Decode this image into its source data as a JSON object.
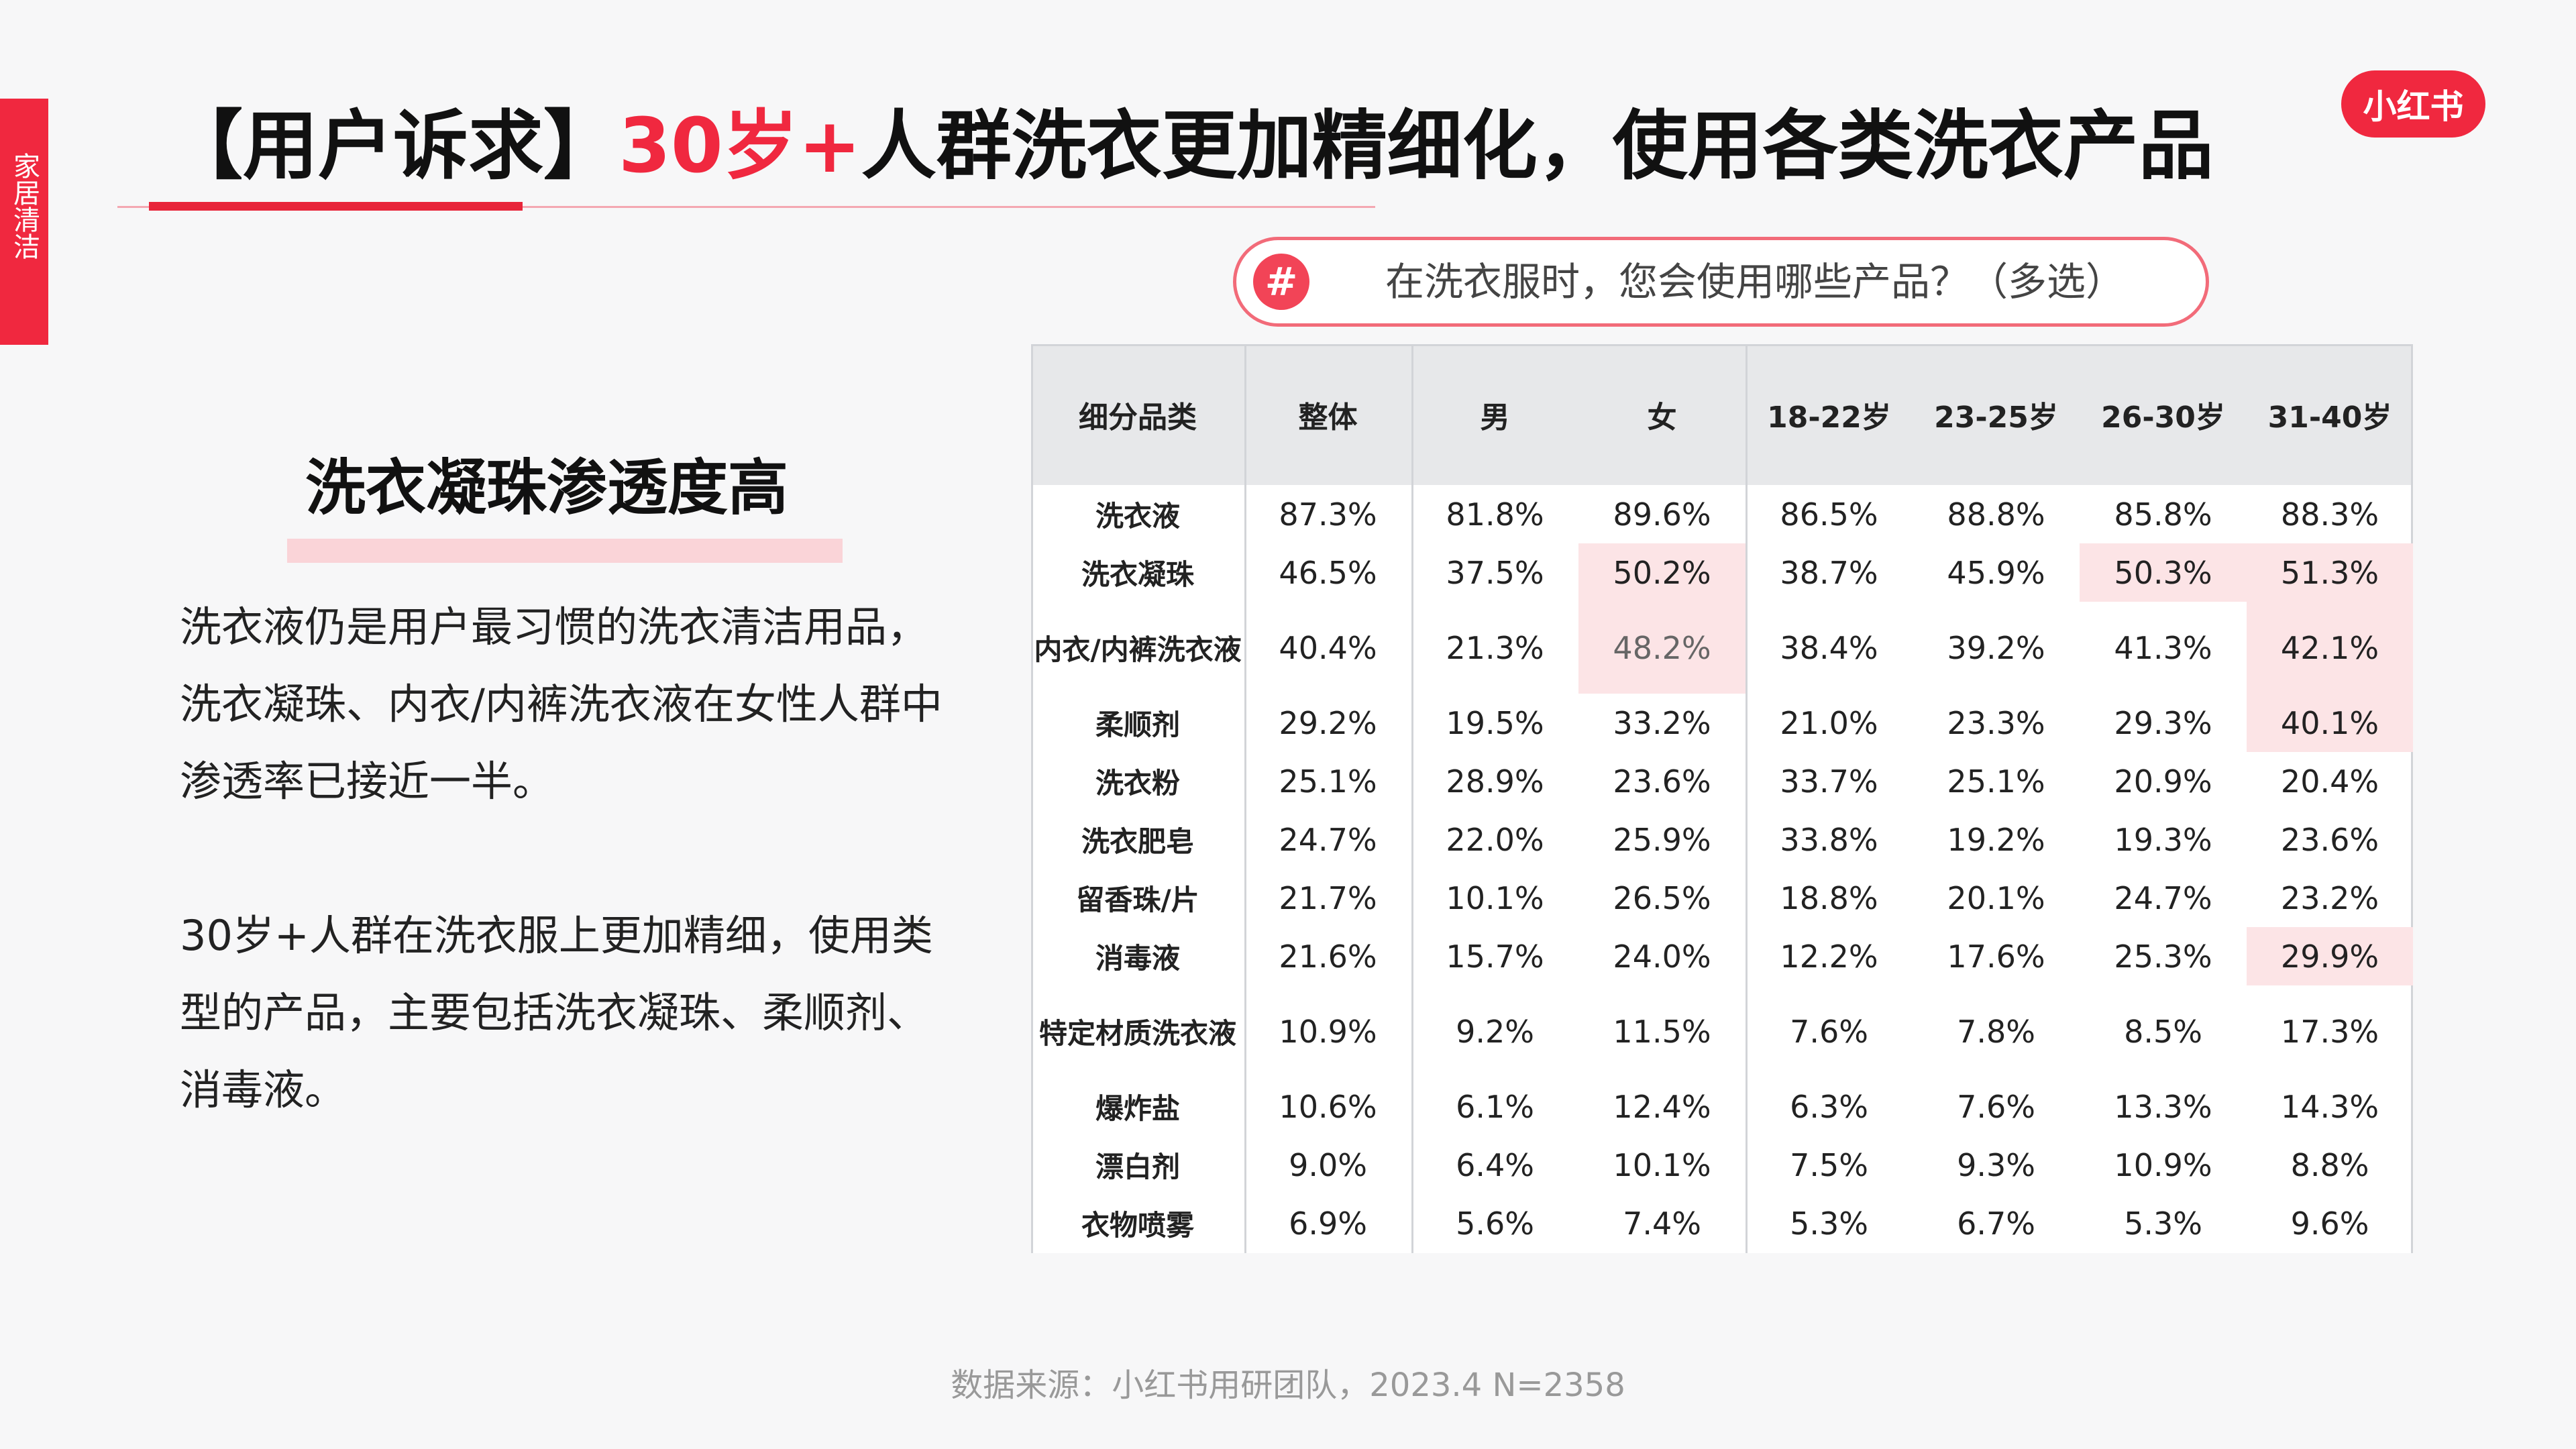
{
  "side_tab": "家居清洁",
  "logo": "小红书",
  "title": {
    "part1": "【用户诉求】",
    "highlight": "30岁+",
    "part2": "人群洗衣更加精细化，使用各类洗衣产品"
  },
  "question": {
    "badge": "#",
    "text": "在洗衣服时，您会使用哪些产品？（多选）"
  },
  "left_panel": {
    "heading": "洗衣凝珠渗透度高",
    "paragraph1": "洗衣液仍是用户最习惯的洗衣清洁用品，洗衣凝珠、内衣/内裤洗衣液在女性人群中渗透率已接近一半。",
    "paragraph2": "30岁+人群在洗衣服上更加精细，使用类型的产品，主要包括洗衣凝珠、柔顺剂、消毒液。"
  },
  "table": {
    "headers": [
      "细分品类",
      "整体",
      "男",
      "女",
      "18-22岁",
      "23-25岁",
      "26-30岁",
      "31-40岁"
    ],
    "rows": [
      {
        "label": "洗衣液",
        "values": [
          "87.3%",
          "81.8%",
          "89.6%",
          "86.5%",
          "88.8%",
          "85.8%",
          "88.3%"
        ]
      },
      {
        "label": "洗衣凝珠",
        "values": [
          "46.5%",
          "37.5%",
          "50.2%",
          "38.7%",
          "45.9%",
          "50.3%",
          "51.3%"
        ]
      },
      {
        "label": "内衣/内裤洗衣液",
        "values": [
          "40.4%",
          "21.3%",
          "48.2%",
          "38.4%",
          "39.2%",
          "41.3%",
          "42.1%"
        ]
      },
      {
        "label": "柔顺剂",
        "values": [
          "29.2%",
          "19.5%",
          "33.2%",
          "21.0%",
          "23.3%",
          "29.3%",
          "40.1%"
        ]
      },
      {
        "label": "洗衣粉",
        "values": [
          "25.1%",
          "28.9%",
          "23.6%",
          "33.7%",
          "25.1%",
          "20.9%",
          "20.4%"
        ]
      },
      {
        "label": "洗衣肥皂",
        "values": [
          "24.7%",
          "22.0%",
          "25.9%",
          "33.8%",
          "19.2%",
          "19.3%",
          "23.6%"
        ]
      },
      {
        "label": "留香珠/片",
        "values": [
          "21.7%",
          "10.1%",
          "26.5%",
          "18.8%",
          "20.1%",
          "24.7%",
          "23.2%"
        ]
      },
      {
        "label": "消毒液",
        "values": [
          "21.6%",
          "15.7%",
          "24.0%",
          "12.2%",
          "17.6%",
          "25.3%",
          "29.9%"
        ]
      },
      {
        "label": "特定材质洗衣液",
        "values": [
          "10.9%",
          "9.2%",
          "11.5%",
          "7.6%",
          "7.8%",
          "8.5%",
          "17.3%"
        ]
      },
      {
        "label": "爆炸盐",
        "values": [
          "10.6%",
          "6.1%",
          "12.4%",
          "6.3%",
          "7.6%",
          "13.3%",
          "14.3%"
        ]
      },
      {
        "label": "漂白剂",
        "values": [
          "9.0%",
          "6.4%",
          "10.1%",
          "7.5%",
          "9.3%",
          "10.9%",
          "8.8%"
        ]
      },
      {
        "label": "衣物喷雾",
        "values": [
          "6.9%",
          "5.6%",
          "7.4%",
          "5.3%",
          "6.7%",
          "5.3%",
          "9.6%"
        ]
      }
    ],
    "highlight_color": "#fce4e6"
  },
  "footer": "数据来源：小红书用研团队，2023.4 N=2358",
  "colors": {
    "accent": "#f0283f",
    "background": "#f7f7f8"
  }
}
